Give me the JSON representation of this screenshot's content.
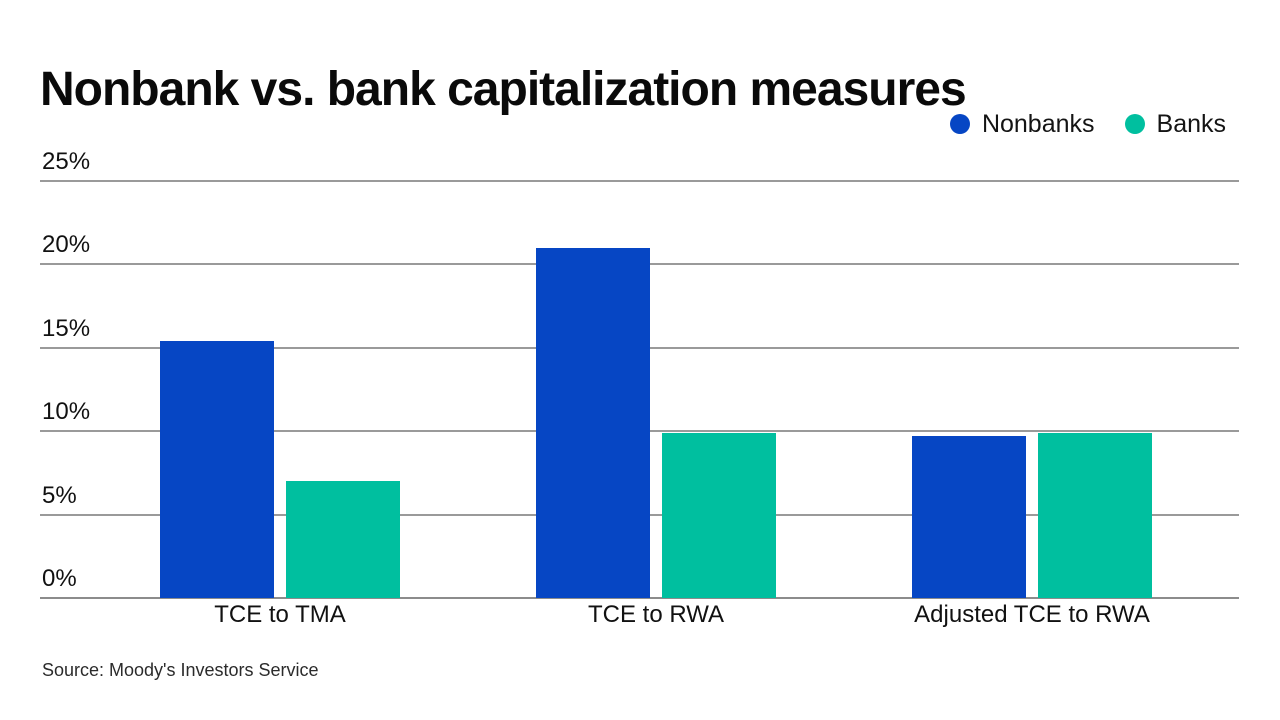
{
  "header": {
    "title": "Nonbank vs. bank capitalization measures"
  },
  "chart_data": {
    "type": "bar",
    "title": "Nonbank vs. bank capitalization measures",
    "categories": [
      "TCE to TMA",
      "TCE to RWA",
      "Adjusted TCE to RWA"
    ],
    "series": [
      {
        "name": "Nonbanks",
        "color": "#0646C4",
        "values": [
          15.4,
          21.0,
          9.7
        ]
      },
      {
        "name": "Banks",
        "color": "#00BF9F",
        "values": [
          7.0,
          9.9,
          9.9
        ]
      }
    ],
    "xlabel": "",
    "ylabel": "",
    "ylim": [
      0,
      25
    ],
    "y_ticks": [
      0,
      5,
      10,
      15,
      20,
      25
    ],
    "tick_suffix": "%",
    "grid": true,
    "legend_position": "top-right",
    "colors": {
      "nonbanks_blue": "#0646C4",
      "banks_teal": "#00BF9F",
      "gridline_gray": "#9a9a9a",
      "text_black": "#111111"
    }
  },
  "footer": {
    "source": "Source: Moody's Investors Service"
  }
}
